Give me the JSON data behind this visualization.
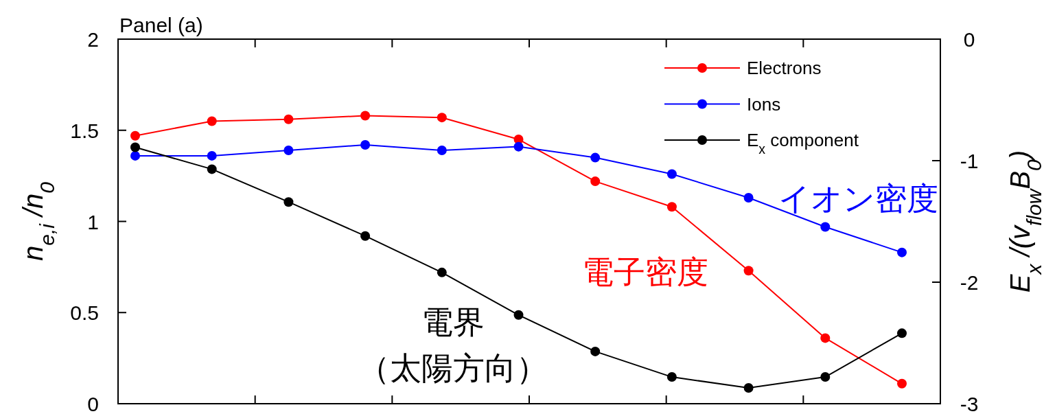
{
  "chart_data": {
    "type": "line",
    "title": "Panel (a)",
    "ylabel": "n$_{e,i}$ /n$_{0}$",
    "y2label": "E$_{x}$ /(v$_{flow}$B$_{0}$)",
    "categories": [
      null,
      null,
      null,
      null,
      null,
      null,
      null,
      null,
      null,
      null,
      null
    ],
    "ylim": [
      0,
      2
    ],
    "yticks": [
      0,
      0.5,
      1,
      1.5,
      2
    ],
    "y2lim": [
      -3,
      0
    ],
    "y2ticks": [
      -3,
      -2,
      -1,
      0
    ],
    "marker": "circle",
    "legend": "top right",
    "series": [
      {
        "name": "Electrons",
        "color": "#ff0000",
        "values": [
          1.47,
          1.55,
          1.56,
          1.58,
          1.57,
          1.45,
          1.22,
          1.08,
          0.73,
          0.36,
          0.11
        ]
      },
      {
        "name": "Ions",
        "color": "#0000ff",
        "values": [
          1.36,
          1.36,
          1.39,
          1.42,
          1.39,
          1.41,
          1.35,
          1.26,
          1.13,
          0.97,
          0.83
        ]
      },
      {
        "name": "E$_{x}$ component",
        "color": "#000000",
        "axis": "y2",
        "values": [
          -0.89,
          -1.07,
          -1.34,
          -1.62,
          -1.92,
          -2.27,
          -2.57,
          -2.78,
          -2.87,
          -2.78,
          -2.42
        ]
      }
    ],
    "annotations": [
      "電子密度",
      "イオン密度",
      "電界",
      "（太陽方向）"
    ]
  }
}
